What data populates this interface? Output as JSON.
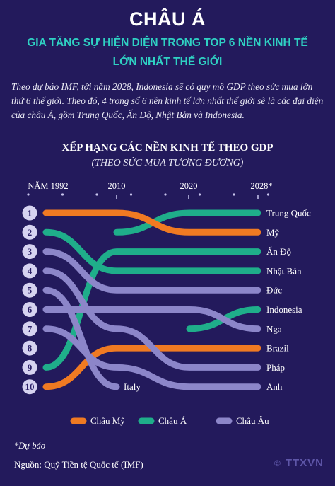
{
  "header": {
    "title": "CHÂU Á",
    "subtitle_line1": "GIA TĂNG SỰ HIỆN DIỆN TRONG TOP 6 NỀN KINH TẾ",
    "subtitle_line2": "LỚN NHẤT THẾ GIỚI"
  },
  "intro": "Theo dự báo IMF, tới năm 2028, Indonesia sẽ có quy mô GDP theo sức mua lớn thứ 6 thế giới. Theo đó, 4 trong số 6 nền kinh tế lớn nhất thế giới sẽ là các đại diện của châu Á, gồm Trung Quốc, Ấn Độ, Nhật Bản và Indonesia.",
  "chart_title": "XẾP HẠNG CÁC NỀN KINH TẾ THEO GDP",
  "chart_subtitle": "(THEO SỨC MUA TƯƠNG ĐƯƠNG)",
  "footnote": "*Dự báo",
  "source": "Nguồn: Quỹ Tiền tệ Quốc tế (IMF)",
  "logo": {
    "copyright": "©",
    "text": "TTXVN"
  },
  "colors": {
    "background": "#231a5c",
    "americas": "#f07a22",
    "asia": "#1fae8a",
    "europe": "#8c86c9",
    "badge": "#d6d3f0"
  },
  "chart_data": {
    "type": "bump",
    "x": [
      "NĂM 1992",
      "2010",
      "2020",
      "2028*"
    ],
    "ranks": [
      "1",
      "2",
      "3",
      "4",
      "5",
      "6",
      "7",
      "8",
      "9",
      "10"
    ],
    "series": [
      {
        "name": "Trung Quốc",
        "group": "asia",
        "values": [
          null,
          2,
          1,
          1
        ]
      },
      {
        "name": "Mỹ",
        "group": "americas",
        "values": [
          1,
          1,
          2,
          2
        ]
      },
      {
        "name": "Ấn Độ",
        "group": "asia",
        "values": [
          9,
          3,
          3,
          3
        ]
      },
      {
        "name": "Nhật Bản",
        "group": "asia",
        "values": [
          2,
          4,
          4,
          4
        ]
      },
      {
        "name": "Đức",
        "group": "europe",
        "values": [
          3,
          5,
          5,
          5
        ]
      },
      {
        "name": "Indonesia",
        "group": "asia",
        "values": [
          null,
          null,
          7,
          6
        ]
      },
      {
        "name": "Nga",
        "group": "europe",
        "values": [
          6,
          6,
          6,
          7
        ]
      },
      {
        "name": "Brazil",
        "group": "americas",
        "values": [
          10,
          8,
          8,
          8
        ]
      },
      {
        "name": "Pháp",
        "group": "europe",
        "values": [
          4,
          7,
          9,
          9
        ]
      },
      {
        "name": "Anh",
        "group": "europe",
        "values": [
          7,
          9,
          10,
          10
        ]
      },
      {
        "name": "Italy",
        "group": "europe",
        "values": [
          5,
          10,
          null,
          null
        ]
      }
    ],
    "legend": [
      {
        "group": "americas",
        "label": "Châu Mỹ"
      },
      {
        "group": "asia",
        "label": "Châu Á"
      },
      {
        "group": "europe",
        "label": "Châu Âu"
      }
    ],
    "legend_position": "bottom",
    "grid": false
  }
}
